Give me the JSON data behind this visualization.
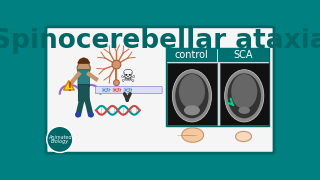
{
  "title": "Spinocerebellar ataxia",
  "title_color": "#006666",
  "bg_color": "#008080",
  "panel_bg": "#f5f5f5",
  "border_color": "#006666",
  "control_label": "control",
  "sca_label": "SCA",
  "label_bg": "#007070",
  "label_text_color": "#ffffff",
  "brand_text": "Animated\nBiology",
  "brand_bg": "#006666"
}
